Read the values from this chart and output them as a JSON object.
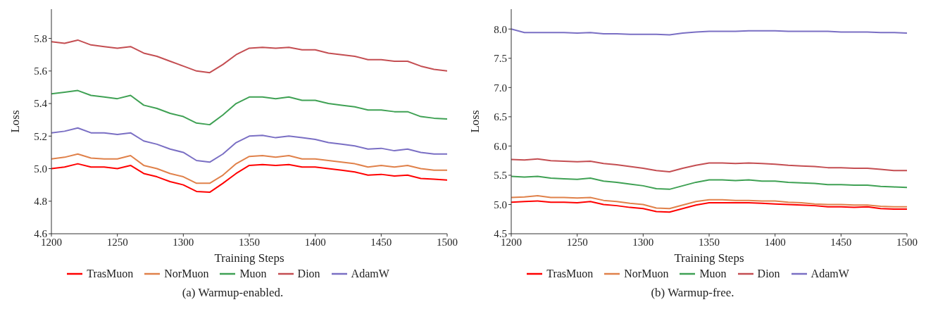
{
  "chart_data": [
    {
      "type": "line",
      "title": "(a) Warmup-enabled.",
      "xlabel": "Training Steps",
      "ylabel": "Loss",
      "xlim": [
        1200,
        1500
      ],
      "xticks": [
        1200,
        1250,
        1300,
        1350,
        1400,
        1450,
        1500
      ],
      "ylim": [
        4.6,
        5.98
      ],
      "yticks": [
        4.6,
        4.8,
        {
          "value": 5,
          "label": "5.0"
        },
        5.2,
        5.4,
        5.6,
        5.8
      ],
      "grid": false,
      "legend": "bottom",
      "marker": "none",
      "line_style": "solid",
      "x": [
        1200,
        1210,
        1220,
        1230,
        1240,
        1250,
        1260,
        1270,
        1280,
        1290,
        1300,
        1310,
        1320,
        1330,
        1340,
        1350,
        1360,
        1370,
        1380,
        1390,
        1400,
        1410,
        1420,
        1430,
        1440,
        1450,
        1460,
        1470,
        1480,
        1490,
        1500
      ],
      "series": [
        {
          "name": "TrasMuon",
          "color": "#ff0000",
          "values": [
            5.0,
            5.01,
            5.03,
            5.01,
            5.01,
            5.0,
            5.02,
            4.97,
            4.95,
            4.92,
            4.9,
            4.86,
            4.855,
            4.91,
            4.97,
            5.02,
            5.025,
            5.02,
            5.025,
            5.01,
            5.01,
            5.0,
            4.99,
            4.98,
            4.96,
            4.965,
            4.955,
            4.96,
            4.94,
            4.935,
            4.93
          ]
        },
        {
          "name": "NorMuon",
          "color": "#e0814a",
          "values": [
            5.06,
            5.07,
            5.09,
            5.065,
            5.06,
            5.06,
            5.08,
            5.02,
            5.0,
            4.97,
            4.95,
            4.91,
            4.91,
            4.96,
            5.03,
            5.075,
            5.08,
            5.07,
            5.08,
            5.06,
            5.06,
            5.05,
            5.04,
            5.03,
            5.01,
            5.02,
            5.01,
            5.02,
            5.0,
            4.99,
            4.99
          ]
        },
        {
          "name": "Muon",
          "color": "#3fa154",
          "values": [
            5.46,
            5.47,
            5.48,
            5.45,
            5.44,
            5.43,
            5.45,
            5.39,
            5.37,
            5.34,
            5.32,
            5.28,
            5.27,
            5.33,
            5.4,
            5.44,
            5.44,
            5.43,
            5.44,
            5.42,
            5.42,
            5.4,
            5.39,
            5.38,
            5.36,
            5.36,
            5.35,
            5.35,
            5.32,
            5.31,
            5.305
          ]
        },
        {
          "name": "Dion",
          "color": "#c44e52",
          "values": [
            5.78,
            5.77,
            5.79,
            5.76,
            5.75,
            5.74,
            5.75,
            5.71,
            5.69,
            5.66,
            5.63,
            5.6,
            5.59,
            5.64,
            5.7,
            5.74,
            5.745,
            5.74,
            5.745,
            5.73,
            5.73,
            5.71,
            5.7,
            5.69,
            5.67,
            5.67,
            5.66,
            5.66,
            5.63,
            5.61,
            5.6
          ]
        },
        {
          "name": "AdamW",
          "color": "#7a6fc4",
          "values": [
            5.22,
            5.23,
            5.25,
            5.22,
            5.22,
            5.21,
            5.22,
            5.17,
            5.15,
            5.12,
            5.1,
            5.05,
            5.04,
            5.09,
            5.16,
            5.2,
            5.205,
            5.19,
            5.2,
            5.19,
            5.18,
            5.16,
            5.15,
            5.14,
            5.12,
            5.125,
            5.11,
            5.12,
            5.1,
            5.09,
            5.09
          ]
        }
      ]
    },
    {
      "type": "line",
      "title": "(b) Warmup-free.",
      "xlabel": "Training Steps",
      "ylabel": "Loss",
      "xlim": [
        1200,
        1500
      ],
      "xticks": [
        1200,
        1250,
        1300,
        1350,
        1400,
        1450,
        1500
      ],
      "ylim": [
        4.5,
        8.34
      ],
      "yticks": [
        4.5,
        {
          "value": 5,
          "label": "5.0"
        },
        5.5,
        {
          "value": 6,
          "label": "6.0"
        },
        6.5,
        {
          "value": 7,
          "label": "7.0"
        },
        7.5,
        {
          "value": 8,
          "label": "8.0"
        }
      ],
      "grid": false,
      "legend": "bottom",
      "marker": "none",
      "line_style": "solid",
      "x": [
        1200,
        1210,
        1220,
        1230,
        1240,
        1250,
        1260,
        1270,
        1280,
        1290,
        1300,
        1310,
        1320,
        1330,
        1340,
        1350,
        1360,
        1370,
        1380,
        1390,
        1400,
        1410,
        1420,
        1430,
        1440,
        1450,
        1460,
        1470,
        1480,
        1490,
        1500
      ],
      "series": [
        {
          "name": "TrasMuon",
          "color": "#ff0000",
          "values": [
            5.04,
            5.05,
            5.06,
            5.04,
            5.04,
            5.03,
            5.05,
            5.0,
            4.98,
            4.95,
            4.93,
            4.88,
            4.87,
            4.93,
            4.99,
            5.03,
            5.03,
            5.03,
            5.03,
            5.02,
            5.01,
            5.0,
            4.99,
            4.98,
            4.96,
            4.96,
            4.95,
            4.96,
            4.93,
            4.92,
            4.92
          ]
        },
        {
          "name": "NorMuon",
          "color": "#e0814a",
          "values": [
            5.12,
            5.13,
            5.15,
            5.12,
            5.12,
            5.11,
            5.12,
            5.07,
            5.05,
            5.02,
            5.0,
            4.94,
            4.93,
            4.99,
            5.05,
            5.08,
            5.08,
            5.07,
            5.07,
            5.06,
            5.06,
            5.04,
            5.03,
            5.01,
            5.0,
            5.0,
            4.99,
            4.99,
            4.97,
            4.96,
            4.96
          ]
        },
        {
          "name": "Muon",
          "color": "#3fa154",
          "values": [
            5.48,
            5.47,
            5.48,
            5.45,
            5.44,
            5.43,
            5.45,
            5.4,
            5.38,
            5.35,
            5.32,
            5.27,
            5.26,
            5.32,
            5.38,
            5.42,
            5.42,
            5.41,
            5.42,
            5.4,
            5.4,
            5.38,
            5.37,
            5.36,
            5.34,
            5.34,
            5.33,
            5.33,
            5.31,
            5.3,
            5.29
          ]
        },
        {
          "name": "Dion",
          "color": "#c44e52",
          "values": [
            5.77,
            5.76,
            5.78,
            5.75,
            5.74,
            5.73,
            5.74,
            5.7,
            5.68,
            5.65,
            5.62,
            5.58,
            5.56,
            5.62,
            5.67,
            5.71,
            5.71,
            5.7,
            5.71,
            5.7,
            5.69,
            5.67,
            5.66,
            5.65,
            5.63,
            5.63,
            5.62,
            5.62,
            5.6,
            5.58,
            5.58
          ]
        },
        {
          "name": "AdamW",
          "color": "#7a6fc4",
          "values": [
            8.0,
            7.94,
            7.94,
            7.94,
            7.94,
            7.93,
            7.94,
            7.92,
            7.92,
            7.91,
            7.91,
            7.91,
            7.9,
            7.93,
            7.95,
            7.96,
            7.96,
            7.96,
            7.97,
            7.97,
            7.97,
            7.96,
            7.96,
            7.96,
            7.96,
            7.95,
            7.95,
            7.95,
            7.94,
            7.94,
            7.93
          ]
        }
      ]
    }
  ]
}
